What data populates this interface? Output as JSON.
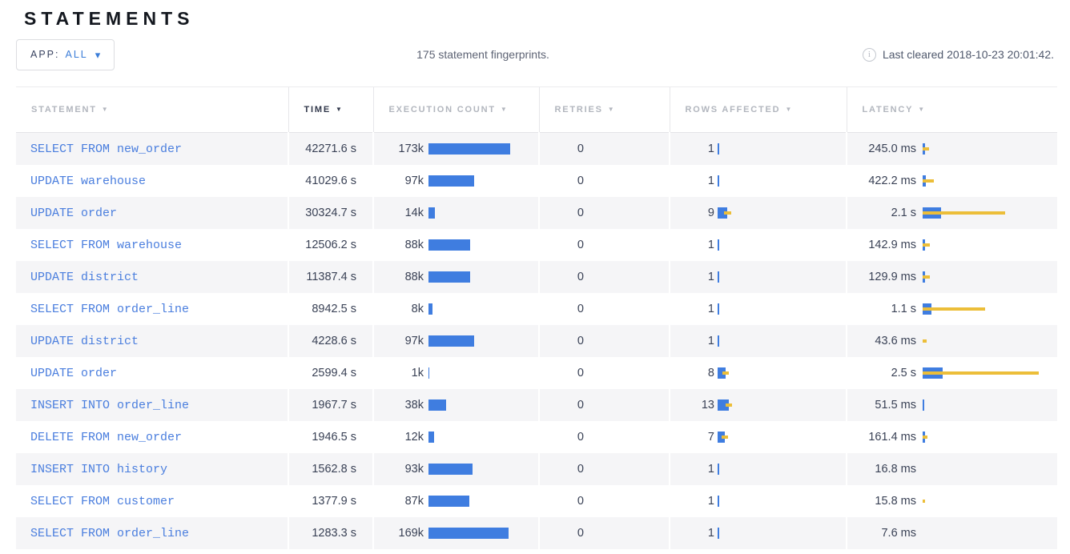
{
  "page": {
    "title": "STATEMENTS"
  },
  "toolbar": {
    "app_filter_label": "APP:",
    "app_filter_value": "ALL",
    "summary": "175 statement fingerprints.",
    "last_cleared": "Last cleared 2018-10-23 20:01:42."
  },
  "icons": {
    "sort_arrow": "▼",
    "dropdown_caret": "▾",
    "info": "i"
  },
  "colors": {
    "bar_blue": "#3f7de0",
    "bar_yellow": "#ecbe39",
    "link_blue": "#4a7ede",
    "dark": "#394155",
    "header_gray": "#b2b6be",
    "header_dark": "#30374a",
    "stripe": "#f5f5f7"
  },
  "table": {
    "columns": [
      {
        "label": "STATEMENT",
        "sorted": false
      },
      {
        "label": "TIME",
        "sorted": true
      },
      {
        "label": "EXECUTION COUNT",
        "sorted": false
      },
      {
        "label": "RETRIES",
        "sorted": false
      },
      {
        "label": "ROWS AFFECTED",
        "sorted": false
      },
      {
        "label": "LATENCY",
        "sorted": false
      }
    ],
    "rows": [
      {
        "statement": "SELECT FROM new_order",
        "time": "42271.6 s",
        "count": "173k",
        "count_bar": 102,
        "retries": "0",
        "rows_affected": "1",
        "rows_bar": 2,
        "rows_dev": 0,
        "latency": "245.0 ms",
        "lat_bar": 3,
        "lat_dev": 5
      },
      {
        "statement": "UPDATE warehouse",
        "time": "41029.6 s",
        "count": "97k",
        "count_bar": 57,
        "retries": "0",
        "rows_affected": "1",
        "rows_bar": 2,
        "rows_dev": 0,
        "latency": "422.2 ms",
        "lat_bar": 4,
        "lat_dev": 10
      },
      {
        "statement": "UPDATE order",
        "time": "30324.7 s",
        "count": "14k",
        "count_bar": 8,
        "retries": "0",
        "rows_affected": "9",
        "rows_bar": 12,
        "rows_dev": 4.5,
        "latency": "2.1 s",
        "lat_bar": 23,
        "lat_dev": 80
      },
      {
        "statement": "SELECT FROM warehouse",
        "time": "12506.2 s",
        "count": "88k",
        "count_bar": 52,
        "retries": "0",
        "rows_affected": "1",
        "rows_bar": 2,
        "rows_dev": 0,
        "latency": "142.9 ms",
        "lat_bar": 3,
        "lat_dev": 6
      },
      {
        "statement": "UPDATE district",
        "time": "11387.4 s",
        "count": "88k",
        "count_bar": 52,
        "retries": "0",
        "rows_affected": "1",
        "rows_bar": 2,
        "rows_dev": 0,
        "latency": "129.9 ms",
        "lat_bar": 3,
        "lat_dev": 6
      },
      {
        "statement": "SELECT FROM order_line",
        "time": "8942.5 s",
        "count": "8k",
        "count_bar": 5,
        "retries": "0",
        "rows_affected": "1",
        "rows_bar": 2,
        "rows_dev": 0,
        "latency": "1.1 s",
        "lat_bar": 11,
        "lat_dev": 67
      },
      {
        "statement": "UPDATE district",
        "time": "4228.6 s",
        "count": "97k",
        "count_bar": 57,
        "retries": "0",
        "rows_affected": "1",
        "rows_bar": 2,
        "rows_dev": 0,
        "latency": "43.6 ms",
        "lat_bar": 0,
        "lat_dev": 5
      },
      {
        "statement": "UPDATE order",
        "time": "2599.4 s",
        "count": "1k",
        "count_bar": 1,
        "retries": "0",
        "rows_affected": "8",
        "rows_bar": 10,
        "rows_dev": 4,
        "latency": "2.5 s",
        "lat_bar": 25,
        "lat_dev": 120
      },
      {
        "statement": "INSERT INTO order_line",
        "time": "1967.7 s",
        "count": "38k",
        "count_bar": 22,
        "retries": "0",
        "rows_affected": "13",
        "rows_bar": 14,
        "rows_dev": 4,
        "latency": "51.5 ms",
        "lat_bar": 2,
        "lat_dev": 0
      },
      {
        "statement": "DELETE FROM new_order",
        "time": "1946.5 s",
        "count": "12k",
        "count_bar": 7,
        "retries": "0",
        "rows_affected": "7",
        "rows_bar": 9,
        "rows_dev": 4,
        "latency": "161.4 ms",
        "lat_bar": 3,
        "lat_dev": 3
      },
      {
        "statement": "INSERT INTO history",
        "time": "1562.8 s",
        "count": "93k",
        "count_bar": 55,
        "retries": "0",
        "rows_affected": "1",
        "rows_bar": 2,
        "rows_dev": 0,
        "latency": "16.8 ms",
        "lat_bar": 0,
        "lat_dev": 0
      },
      {
        "statement": "SELECT FROM customer",
        "time": "1377.9 s",
        "count": "87k",
        "count_bar": 51,
        "retries": "0",
        "rows_affected": "1",
        "rows_bar": 2,
        "rows_dev": 0,
        "latency": "15.8 ms",
        "lat_bar": 0,
        "lat_dev": 3
      },
      {
        "statement": "SELECT FROM order_line",
        "time": "1283.3 s",
        "count": "169k",
        "count_bar": 100,
        "retries": "0",
        "rows_affected": "1",
        "rows_bar": 2,
        "rows_dev": 0,
        "latency": "7.6 ms",
        "lat_bar": 0,
        "lat_dev": 0
      }
    ]
  }
}
